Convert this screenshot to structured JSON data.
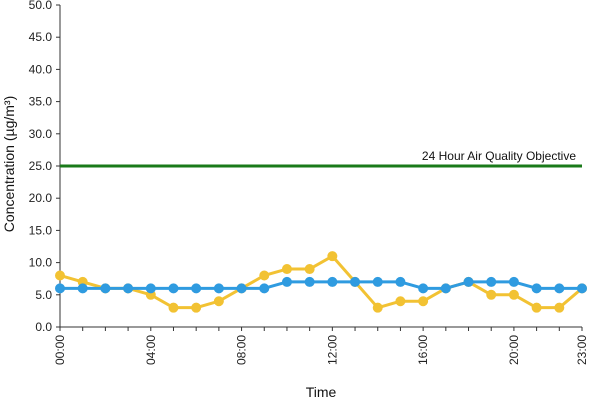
{
  "chart_data": {
    "type": "line",
    "xlabel": "Time",
    "ylabel": "Concentration (µg/m³)",
    "ylim": [
      0,
      50
    ],
    "yticks": [
      "0.0",
      "5.0",
      "10.0",
      "15.0",
      "20.0",
      "25.0",
      "30.0",
      "35.0",
      "40.0",
      "45.0",
      "50.0"
    ],
    "x": [
      "00:00",
      "01:00",
      "02:00",
      "03:00",
      "04:00",
      "05:00",
      "06:00",
      "07:00",
      "08:00",
      "09:00",
      "10:00",
      "11:00",
      "12:00",
      "13:00",
      "14:00",
      "15:00",
      "16:00",
      "17:00",
      "18:00",
      "19:00",
      "20:00",
      "21:00",
      "22:00",
      "23:00"
    ],
    "xtick_labels": [
      "00:00",
      "04:00",
      "08:00",
      "12:00",
      "16:00",
      "20:00",
      "23:00"
    ],
    "grid": false,
    "reference_line": {
      "label": "24 Hour Air Quality Objective",
      "value": 25,
      "color": "#1a7a1a"
    },
    "series": [
      {
        "color": "#f2c233",
        "values": [
          8,
          7,
          6,
          6,
          5,
          3,
          3,
          4,
          6,
          8,
          9,
          9,
          11,
          7,
          3,
          4,
          4,
          6,
          7,
          5,
          5,
          3,
          3,
          6
        ]
      },
      {
        "color": "#2f9be0",
        "values": [
          6,
          6,
          6,
          6,
          6,
          6,
          6,
          6,
          6,
          6,
          7,
          7,
          7,
          7,
          7,
          7,
          6,
          6,
          7,
          7,
          7,
          6,
          6,
          6
        ]
      }
    ]
  }
}
